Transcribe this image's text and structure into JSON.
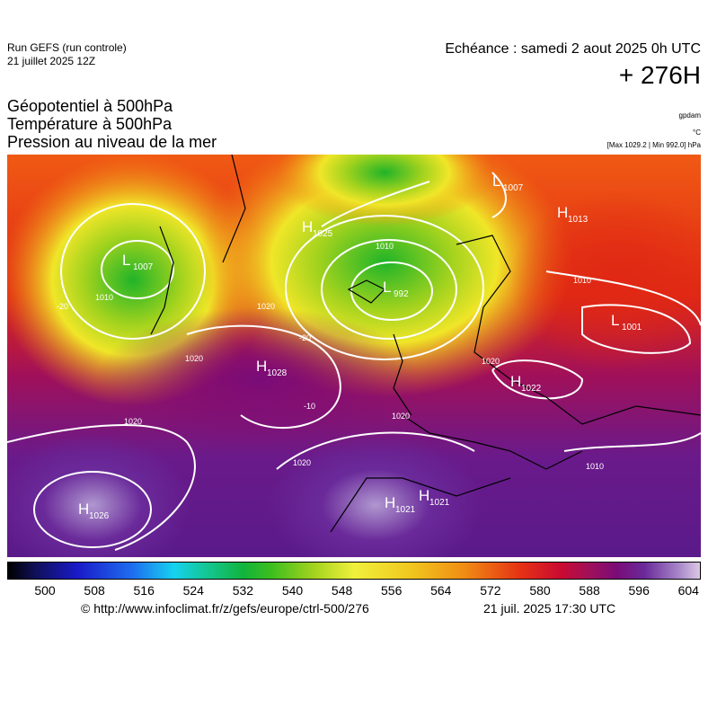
{
  "header": {
    "run": "Run GEFS (run controle)",
    "run_date": "21 juillet 2025 12Z",
    "valid": "Echéance : samedi 2 aout 2025 0h UTC",
    "lead": "+ 276H"
  },
  "legend": {
    "lines": [
      "Géopotentiel à 500hPa",
      "Température à 500hPa",
      "Pression au niveau de la mer"
    ],
    "units": [
      "gpdam",
      "°C",
      "[Max 1029.2 | Min 992.0] hPa"
    ]
  },
  "map": {
    "centers": [
      {
        "letter": "L",
        "value": "1007"
      },
      {
        "letter": "H",
        "value": "1025"
      },
      {
        "letter": "L",
        "value": "992"
      },
      {
        "letter": "L",
        "value": "1007"
      },
      {
        "letter": "H",
        "value": "1013"
      },
      {
        "letter": "L",
        "value": "1001"
      },
      {
        "letter": "H",
        "value": "1028"
      },
      {
        "letter": "H",
        "value": "1022"
      },
      {
        "letter": "H",
        "value": "1026"
      },
      {
        "letter": "H",
        "value": "1021"
      },
      {
        "letter": "H",
        "value": "1021"
      }
    ],
    "contour_labels": [
      "1010",
      "1020",
      "1020",
      "1020",
      "1020",
      "1020",
      "1010",
      "1020",
      "1010",
      "1010",
      "-20",
      "-20",
      "-10"
    ]
  },
  "colorbar": {
    "ticks": [
      "500",
      "508",
      "516",
      "524",
      "532",
      "540",
      "548",
      "556",
      "564",
      "572",
      "580",
      "588",
      "596",
      "604"
    ]
  },
  "footer": {
    "source": "© http://www.infoclimat.fr/z/gefs/europe/ctrl-500/276",
    "generated": "21 juil. 2025 17:30 UTC"
  }
}
